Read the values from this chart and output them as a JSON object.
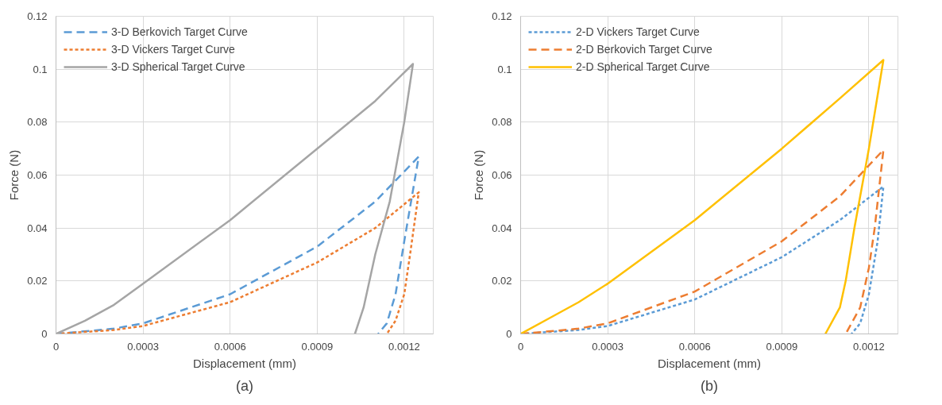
{
  "chart_data": [
    {
      "type": "line",
      "xlabel": "Displacement (mm)",
      "ylabel": "Force (N)",
      "annotations": [
        "(a)"
      ],
      "xlim": [
        0,
        0.0013
      ],
      "xticks": [
        0,
        0.0003,
        0.0006,
        0.0009,
        0.0012
      ],
      "ylim": [
        0,
        0.12
      ],
      "yticks": [
        0,
        0.02,
        0.04,
        0.06,
        0.08,
        0.1,
        0.12
      ],
      "grid": true,
      "legend": "top left",
      "marker": "none",
      "series": [
        {
          "name": "3-D Berkovich Target Curve",
          "color": "#5b9bd5",
          "line_style": "dashed",
          "x": [
            0,
            0.0002,
            0.0003,
            0.0006,
            0.0009,
            0.0011,
            0.00125,
            0.0012,
            0.00117,
            0.00114,
            0.00111
          ],
          "values": [
            0,
            0.002,
            0.004,
            0.015,
            0.033,
            0.05,
            0.067,
            0.035,
            0.015,
            0.004,
            0
          ]
        },
        {
          "name": "3-D Vickers Target Curve",
          "color": "#ed7d31",
          "line_style": "dotted",
          "x": [
            0,
            0.0002,
            0.0003,
            0.0006,
            0.0009,
            0.0011,
            0.00125,
            0.00122,
            0.0012,
            0.00117,
            0.00114
          ],
          "values": [
            0,
            0.0015,
            0.003,
            0.012,
            0.027,
            0.04,
            0.0535,
            0.03,
            0.015,
            0.005,
            0
          ]
        },
        {
          "name": "3-D Spherical Target Curve",
          "color": "#a5a5a5",
          "line_style": "solid",
          "x": [
            0,
            0.0001,
            0.0002,
            0.0003,
            0.0006,
            0.0009,
            0.0011,
            0.00123,
            0.0012,
            0.00115,
            0.0011,
            0.00106,
            0.00103
          ],
          "values": [
            0,
            0.005,
            0.011,
            0.019,
            0.043,
            0.07,
            0.088,
            0.102,
            0.08,
            0.05,
            0.03,
            0.01,
            0
          ]
        }
      ]
    },
    {
      "type": "line",
      "xlabel": "Displacement (mm)",
      "ylabel": "Force (N)",
      "annotations": [
        "(b)"
      ],
      "xlim": [
        0,
        0.0013
      ],
      "xticks": [
        0,
        0.0003,
        0.0006,
        0.0009,
        0.0012
      ],
      "ylim": [
        0,
        0.12
      ],
      "yticks": [
        0,
        0.02,
        0.04,
        0.06,
        0.08,
        0.1,
        0.12
      ],
      "grid": true,
      "legend": "top left",
      "marker": "none",
      "series": [
        {
          "name": "2-D Vickers Target Curve",
          "color": "#5b9bd5",
          "line_style": "dotted",
          "x": [
            0,
            0.0002,
            0.0003,
            0.0006,
            0.0009,
            0.0011,
            0.00125,
            0.00123,
            0.0012,
            0.00117,
            0.00114
          ],
          "values": [
            0,
            0.0015,
            0.003,
            0.013,
            0.029,
            0.043,
            0.0557,
            0.035,
            0.015,
            0.004,
            0
          ]
        },
        {
          "name": "2-D Berkovich Target Curve",
          "color": "#ed7d31",
          "line_style": "dashed",
          "x": [
            0,
            0.0002,
            0.0003,
            0.0006,
            0.0009,
            0.0011,
            0.00125,
            0.00122,
            0.0012,
            0.00117,
            0.00112
          ],
          "values": [
            0,
            0.002,
            0.004,
            0.016,
            0.035,
            0.052,
            0.0695,
            0.04,
            0.025,
            0.01,
            0
          ]
        },
        {
          "name": "2-D Spherical Target Curve",
          "color": "#ffc000",
          "line_style": "solid",
          "x": [
            0,
            0.0001,
            0.0002,
            0.0003,
            0.0006,
            0.0009,
            0.0011,
            0.00125,
            0.0012,
            0.00115,
            0.00112,
            0.0011,
            0.00105
          ],
          "values": [
            0,
            0.006,
            0.012,
            0.019,
            0.043,
            0.07,
            0.089,
            0.1035,
            0.07,
            0.04,
            0.02,
            0.01,
            0
          ]
        }
      ]
    }
  ]
}
